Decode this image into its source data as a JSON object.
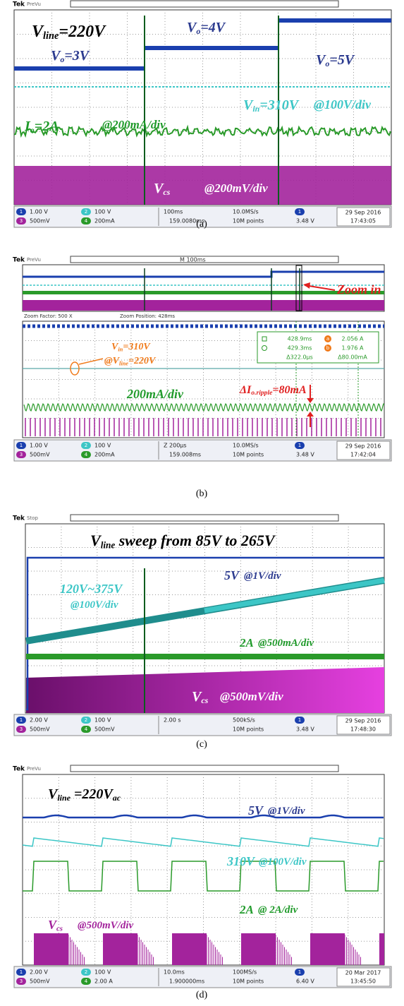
{
  "panels": [
    {
      "caption": "(a)",
      "brand": "Tek",
      "mode": "PreVu",
      "annotations": [
        {
          "parts": [
            "V",
            "line",
            "=220V"
          ],
          "color": "#000000"
        },
        {
          "parts": [
            "V",
            "o",
            "=3V"
          ],
          "color": "#2b3a8f"
        },
        {
          "parts": [
            "V",
            "o",
            "=4V"
          ],
          "color": "#2b3a8f"
        },
        {
          "parts": [
            "V",
            "o",
            "=5V"
          ],
          "color": "#2b3a8f"
        },
        {
          "parts": [
            "V",
            "in",
            "=310V"
          ],
          "color": "#3cc6c6"
        },
        {
          "parts": [
            "@100V/div"
          ],
          "color": "#3cc6c6"
        },
        {
          "parts": [
            "I",
            "o",
            "=2A"
          ],
          "color": "#1f9a2a"
        },
        {
          "parts": [
            "@200mA/div"
          ],
          "color": "#1f9a2a"
        },
        {
          "parts": [
            "V",
            "cs"
          ],
          "color": "#ffffff"
        },
        {
          "parts": [
            "@200mV/div"
          ],
          "color": "#ffffff"
        }
      ],
      "status": {
        "channels": [
          {
            "id": "1",
            "scale": "1.00 V"
          },
          {
            "id": "2",
            "scale": "100 V"
          },
          {
            "id": "3",
            "scale": "500mV"
          },
          {
            "id": "4",
            "scale": "200mA"
          }
        ],
        "timebase": "100ms",
        "rate": "10.0MS/s",
        "trig_pos": "159.0080ms",
        "record": "10M points",
        "trig_ch": "1",
        "trig_level": "3.48 V",
        "date": "29 Sep 2016",
        "time": "17:43:05"
      }
    },
    {
      "caption": "(b)",
      "brand": "Tek",
      "mode": "PreVu",
      "overview": "M 100ms",
      "zoom_factor": "Zoom Factor: 500 X",
      "zoom_position": "Zoom Position: 428ms",
      "cursors": {
        "t1": "428.9ms",
        "ref_a": "a",
        "v1": "2.056 A",
        "t2": "429.3ms",
        "ref_b": "b",
        "v2": "1.976 A",
        "dt": "Δ322.0μs",
        "dv": "Δ80.00mA"
      },
      "annotations": [
        {
          "parts": [
            "Zoom in"
          ],
          "color": "#e02020"
        },
        {
          "parts": [
            "V",
            "in",
            "=310V"
          ],
          "color": "#f07a1a"
        },
        {
          "parts": [
            "@V",
            "line",
            "=220V"
          ],
          "color": "#f07a1a"
        },
        {
          "parts": [
            "200mA/div"
          ],
          "color": "#1f9a2a"
        },
        {
          "parts": [
            "ΔI",
            "o.ripple",
            "=80mA"
          ],
          "color": "#e02020"
        }
      ],
      "status": {
        "channels": [
          {
            "id": "1",
            "scale": "1.00 V"
          },
          {
            "id": "2",
            "scale": "100 V"
          },
          {
            "id": "3",
            "scale": "500mV"
          },
          {
            "id": "4",
            "scale": "200mA"
          }
        ],
        "timebase": "Z 200μs",
        "rate": "10.0MS/s",
        "trig_pos": "159.008ms",
        "record": "10M points",
        "trig_ch": "1",
        "trig_level": "3.48 V",
        "date": "29 Sep 2016",
        "time": "17:42:04"
      }
    },
    {
      "caption": "(c)",
      "brand": "Tek",
      "mode": "Stop",
      "annotations": [
        {
          "parts": [
            "V",
            "line",
            " sweep from 85V to 265V"
          ],
          "color": "#000000"
        },
        {
          "parts": [
            "5V"
          ],
          "color": "#2b3a8f"
        },
        {
          "parts": [
            "@1V/div"
          ],
          "color": "#2b3a8f"
        },
        {
          "parts": [
            "120V~375V"
          ],
          "color": "#3cc6c6"
        },
        {
          "parts": [
            "@100V/div"
          ],
          "color": "#3cc6c6"
        },
        {
          "parts": [
            "2A"
          ],
          "color": "#1f9a2a"
        },
        {
          "parts": [
            "@500mA/div"
          ],
          "color": "#1f9a2a"
        },
        {
          "parts": [
            "V",
            "cs"
          ],
          "color": "#ffffff"
        },
        {
          "parts": [
            "@500mV/div"
          ],
          "color": "#ffffff"
        }
      ],
      "status": {
        "channels": [
          {
            "id": "1",
            "scale": "2.00 V"
          },
          {
            "id": "2",
            "scale": "100 V"
          },
          {
            "id": "3",
            "scale": "500mV"
          },
          {
            "id": "4",
            "scale": "500mV"
          }
        ],
        "timebase": "2.00 s",
        "rate": "500kS/s",
        "record": "10M points",
        "trig_ch": "1",
        "trig_level": "3.48 V",
        "date": "29 Sep 2016",
        "time": "17:48:30"
      }
    },
    {
      "caption": "(d)",
      "brand": "Tek",
      "mode": "PreVu",
      "annotations": [
        {
          "parts": [
            "V",
            "line",
            " =220V",
            "ac"
          ],
          "color": "#000000"
        },
        {
          "parts": [
            "5V"
          ],
          "color": "#2b3a8f"
        },
        {
          "parts": [
            "@1V/div"
          ],
          "color": "#2b3a8f"
        },
        {
          "parts": [
            "310V"
          ],
          "color": "#3cc6c6"
        },
        {
          "parts": [
            "@100V/div"
          ],
          "color": "#3cc6c6"
        },
        {
          "parts": [
            "2A"
          ],
          "color": "#1f9a2a"
        },
        {
          "parts": [
            "@ 2A/div"
          ],
          "color": "#1f9a2a"
        },
        {
          "parts": [
            "V",
            "cs"
          ],
          "color": "#a3239c"
        },
        {
          "parts": [
            "@500mV/div"
          ],
          "color": "#a3239c"
        }
      ],
      "status": {
        "channels": [
          {
            "id": "1",
            "scale": "2.00 V"
          },
          {
            "id": "2",
            "scale": "100 V"
          },
          {
            "id": "3",
            "scale": "500mV"
          },
          {
            "id": "4",
            "scale": "2.00 A"
          }
        ],
        "timebase": "10.0ms",
        "rate": "100MS/s",
        "trig_pos": "1.900000ms",
        "record": "10M points",
        "trig_ch": "1",
        "trig_level": "6.40 V",
        "date": "20 Mar 2017",
        "time": "13:45:50"
      }
    }
  ]
}
